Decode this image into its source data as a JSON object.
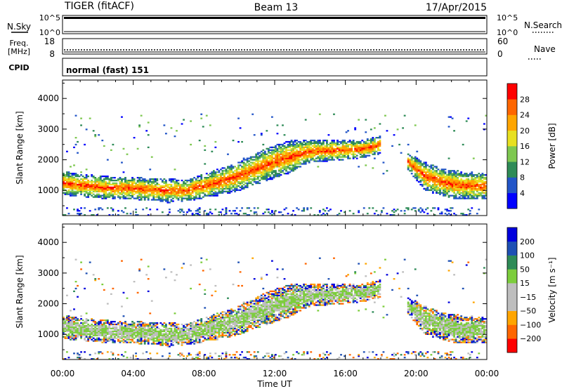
{
  "header": {
    "radar": "TIGER (fitACF)",
    "beam": "Beam 13",
    "date": "17/Apr/2015"
  },
  "nsky_panel": {
    "left_label": "N.Sky",
    "right_label": "N.Search",
    "left_ticks": [
      "10^5",
      "10^0"
    ],
    "right_ticks": [
      "10^5",
      "10^0"
    ]
  },
  "freq_panel": {
    "left_label_1": "Freq.",
    "left_label_2": "[MHz]",
    "right_label": "Nave",
    "left_ticks": [
      "18",
      "8"
    ],
    "right_ticks": [
      "60",
      "0"
    ]
  },
  "cpid_panel": {
    "label": "CPID",
    "mode_text": "normal (fast) 151"
  },
  "colors": {
    "power": [
      "#0000ff",
      "#2255c8",
      "#2e8b57",
      "#7ec850",
      "#e8e020",
      "#ffa500",
      "#ff6600",
      "#ff0000"
    ],
    "velocity": [
      "#ff0000",
      "#ff6600",
      "#ffa500",
      "#bebebe",
      "#bebebe",
      "#7ccd3c",
      "#2e8b57",
      "#1e50b4",
      "#0000dd"
    ]
  },
  "chart_data": [
    {
      "type": "heatmap",
      "quantity": "power",
      "ylabel": "Slant Range [km]",
      "yticks": [
        1000,
        2000,
        3000,
        4000
      ],
      "ylim": [
        180,
        4600
      ],
      "xlim": [
        0,
        24
      ],
      "colorbar": {
        "label": "Power [dB]",
        "ticks": [
          4,
          8,
          12,
          16,
          20,
          24,
          28
        ],
        "range": [
          0,
          32
        ]
      },
      "echo_bands": [
        {
          "x": [
            0,
            1,
            2,
            3,
            4,
            5,
            6,
            7,
            8,
            9,
            10,
            11,
            12,
            13,
            14,
            15,
            16,
            17,
            18
          ],
          "range_lo": [
            950,
            900,
            850,
            800,
            800,
            750,
            700,
            750,
            850,
            950,
            1100,
            1300,
            1500,
            1700,
            2000,
            2050,
            2100,
            2150,
            2300
          ],
          "range_hi": [
            1500,
            1400,
            1350,
            1300,
            1300,
            1250,
            1250,
            1200,
            1400,
            1600,
            1800,
            2100,
            2350,
            2500,
            2500,
            2500,
            2500,
            2500,
            2650
          ],
          "peak_db": 24
        },
        {
          "x": [
            19.5,
            20.5,
            21.5,
            22.5,
            24
          ],
          "range_lo": [
            1800,
            1100,
            900,
            800,
            800
          ],
          "range_hi": [
            2100,
            1800,
            1600,
            1500,
            1400
          ],
          "peak_db": 24
        }
      ]
    },
    {
      "type": "heatmap",
      "quantity": "velocity",
      "ylabel": "Slant Range [km]",
      "yticks": [
        1000,
        2000,
        3000,
        4000
      ],
      "ylim": [
        180,
        4600
      ],
      "xlim": [
        0,
        24
      ],
      "colorbar": {
        "label": "Velocity [m s⁻¹]",
        "ticks": [
          200,
          100,
          50,
          15,
          -15,
          -50,
          -100,
          -200
        ],
        "range": [
          -300,
          300
        ]
      },
      "xlabel": "Time UT",
      "xticks": [
        "00:00",
        "04:00",
        "08:00",
        "12:00",
        "16:00",
        "20:00",
        "00:00"
      ]
    }
  ]
}
